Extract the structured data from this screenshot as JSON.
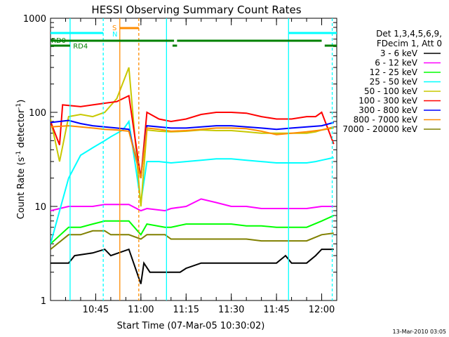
{
  "chart_data": {
    "type": "line",
    "title": "HESSI Observing Summary Count Rates",
    "xlabel": "Start Time (07-Mar-05 10:30:02)",
    "ylabel": "Count Rate (s⁻¹ detector⁻¹)",
    "ylabel_parts": {
      "main": "Count Rate (s",
      "sup1": "-1",
      "mid": " detector",
      "sup2": "-1",
      "end": ")"
    },
    "y_scale": "log",
    "ylim": [
      1,
      1000
    ],
    "xlim_minutes": [
      0,
      95
    ],
    "x_ticks": [
      {
        "minute": 15,
        "label": "10:45"
      },
      {
        "minute": 30,
        "label": "11:00"
      },
      {
        "minute": 45,
        "label": "11:15"
      },
      {
        "minute": 60,
        "label": "11:30"
      },
      {
        "minute": 75,
        "label": "11:45"
      },
      {
        "minute": 90,
        "label": "12:00"
      }
    ],
    "y_ticks": [
      {
        "value": 1,
        "label": "1"
      },
      {
        "value": 10,
        "label": "10"
      },
      {
        "value": 100,
        "label": "100"
      },
      {
        "value": 1000,
        "label": "1000"
      }
    ],
    "legend_header": [
      "Det 1,3,4,5,6,9,",
      "FDecim 1, Att 0"
    ],
    "legend_placement": "right",
    "series": [
      {
        "name": "3 - 6 keV",
        "color": "#000000",
        "x": [
          0,
          6,
          8,
          14,
          18,
          20,
          26,
          30,
          31,
          33,
          38,
          40,
          43,
          45,
          50,
          55,
          60,
          65,
          70,
          75,
          78,
          80,
          85,
          88,
          90,
          94
        ],
        "y": [
          2.5,
          2.5,
          3,
          3.2,
          3.5,
          3,
          3.5,
          1.5,
          2.5,
          2,
          2,
          2,
          2,
          2.2,
          2.5,
          2.5,
          2.5,
          2.5,
          2.5,
          2.5,
          3,
          2.5,
          2.5,
          3,
          3.5,
          3.5
        ]
      },
      {
        "name": "6 - 12 keV",
        "color": "#ff00ff",
        "x": [
          0,
          6,
          10,
          14,
          18,
          20,
          26,
          30,
          32,
          38,
          40,
          45,
          50,
          55,
          60,
          65,
          70,
          75,
          80,
          85,
          90,
          94
        ],
        "y": [
          9,
          10,
          10,
          10,
          10.5,
          10.5,
          10.5,
          9,
          9.5,
          9,
          9.5,
          10,
          12,
          11,
          10,
          10,
          9.5,
          9.5,
          9.5,
          9.5,
          10,
          10
        ]
      },
      {
        "name": "12 - 25 keV",
        "color": "#00ff00",
        "x": [
          0,
          6,
          10,
          14,
          18,
          20,
          26,
          30,
          32,
          38,
          40,
          45,
          50,
          55,
          60,
          65,
          70,
          75,
          80,
          85,
          90,
          94
        ],
        "y": [
          4,
          6,
          6,
          6.5,
          7,
          7,
          7,
          5,
          6.5,
          6,
          6,
          6.5,
          6.5,
          6.5,
          6.5,
          6.2,
          6.2,
          6,
          6,
          6,
          7,
          8
        ]
      },
      {
        "name": "25 - 50 keV",
        "color": "#00ffff",
        "x": [
          0,
          6,
          10,
          14,
          18,
          20,
          24,
          26,
          30,
          32,
          36,
          40,
          45,
          50,
          55,
          60,
          65,
          70,
          75,
          80,
          85,
          88,
          90,
          94
        ],
        "y": [
          4,
          20,
          35,
          42,
          50,
          55,
          65,
          80,
          11,
          30,
          30,
          29,
          30,
          31,
          32,
          32,
          31,
          30,
          29,
          29,
          29,
          30,
          31,
          33
        ]
      },
      {
        "name": "50 - 100 keV",
        "color": "#c8c800",
        "x": [
          0,
          3,
          6,
          10,
          14,
          18,
          22,
          26,
          30,
          32,
          36,
          40,
          45,
          50,
          55,
          60,
          65,
          70,
          75,
          80,
          85,
          88,
          90,
          94
        ],
        "y": [
          85,
          30,
          90,
          95,
          90,
          100,
          140,
          300,
          10,
          65,
          63,
          62,
          63,
          65,
          64,
          64,
          62,
          60,
          60,
          60,
          60,
          62,
          65,
          68
        ]
      },
      {
        "name": "100 - 300 keV",
        "color": "#ff0000",
        "x": [
          0,
          3,
          4,
          10,
          14,
          18,
          22,
          26,
          30,
          32,
          36,
          40,
          45,
          50,
          55,
          60,
          65,
          70,
          75,
          80,
          85,
          88,
          90,
          94
        ],
        "y": [
          80,
          45,
          120,
          115,
          120,
          125,
          130,
          150,
          20,
          100,
          85,
          80,
          85,
          95,
          100,
          100,
          98,
          90,
          85,
          85,
          90,
          90,
          100,
          46
        ]
      },
      {
        "name": "300 - 800 keV",
        "color": "#0000ff",
        "x": [
          0,
          6,
          10,
          14,
          18,
          22,
          26,
          30,
          32,
          36,
          40,
          45,
          50,
          55,
          60,
          65,
          70,
          75,
          80,
          85,
          90,
          94
        ],
        "y": [
          78,
          82,
          76,
          72,
          70,
          68,
          66,
          20,
          72,
          70,
          68,
          68,
          70,
          72,
          72,
          70,
          68,
          66,
          68,
          70,
          72,
          78
        ]
      },
      {
        "name": "800 - 7000 keV",
        "color": "#ff8c00",
        "x": [
          0,
          6,
          10,
          14,
          18,
          22,
          26,
          30,
          32,
          36,
          40,
          45,
          50,
          55,
          60,
          65,
          70,
          75,
          80,
          85,
          90,
          94
        ],
        "y": [
          70,
          72,
          70,
          68,
          66,
          65,
          63,
          20,
          68,
          66,
          63,
          64,
          66,
          68,
          68,
          67,
          63,
          58,
          60,
          62,
          65,
          70
        ]
      },
      {
        "name": "7000 - 20000 keV",
        "color": "#808000",
        "x": [
          0,
          6,
          10,
          14,
          18,
          20,
          26,
          30,
          32,
          38,
          40,
          45,
          50,
          55,
          60,
          65,
          70,
          75,
          80,
          85,
          90,
          94
        ],
        "y": [
          3.5,
          5,
          5,
          5.5,
          5.5,
          5,
          5,
          4.5,
          5,
          5,
          4.5,
          4.5,
          4.5,
          4.5,
          4.5,
          4.5,
          4.3,
          4.3,
          4.3,
          4.3,
          5,
          5.2
        ]
      }
    ],
    "markers": [
      {
        "label": "S",
        "color": "#ff8c00"
      },
      {
        "label": "N",
        "color": "#00ffff"
      },
      {
        "label": "RD0",
        "color": "#008000"
      },
      {
        "label": "RD4",
        "color": "#008000"
      }
    ],
    "footer_stamp": "13-Mar-2010 03:05",
    "grid": false
  }
}
